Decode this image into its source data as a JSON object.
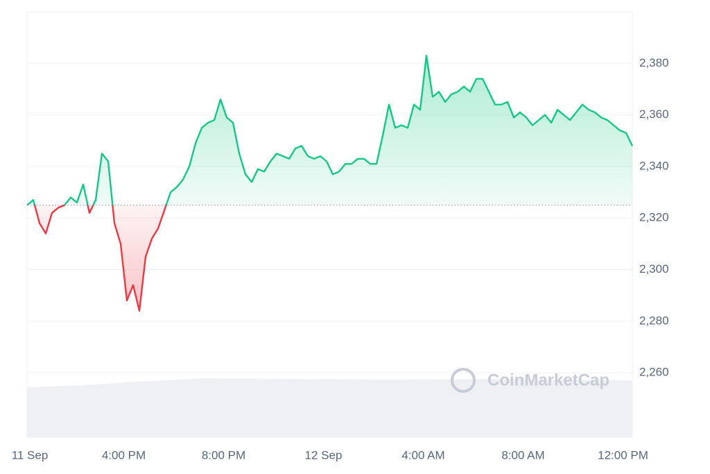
{
  "chart_data": {
    "type": "line",
    "watermark": "CoinMarketCap",
    "baseline": 2325,
    "up_color": "#16c784",
    "down_color": "#ea3943",
    "grid": true,
    "values": [
      2325,
      2327,
      2318,
      2314,
      2322,
      2324,
      2325,
      2328,
      2326,
      2333,
      2322,
      2327,
      2345,
      2342,
      2318,
      2310,
      2288,
      2294,
      2284,
      2305,
      2312,
      2316,
      2323,
      2330,
      2332,
      2335,
      2340,
      2349,
      2355,
      2357,
      2358,
      2366,
      2359,
      2357,
      2345,
      2337,
      2334,
      2339,
      2338,
      2342,
      2345,
      2344,
      2343,
      2347,
      2348,
      2344,
      2343,
      2344,
      2342,
      2337,
      2338,
      2341,
      2341,
      2343,
      2343,
      2341,
      2341,
      2352,
      2364,
      2355,
      2356,
      2355,
      2364,
      2362,
      2383,
      2367,
      2369,
      2365,
      2368,
      2369,
      2371,
      2369,
      2374,
      2374,
      2369,
      2364,
      2364,
      2365,
      2359,
      2361,
      2359,
      2356,
      2358,
      2360,
      2357,
      2362,
      2360,
      2358,
      2361,
      2364,
      2362,
      2361,
      2359,
      2358,
      2356,
      2354,
      2353,
      2348
    ],
    "xlim": [
      0,
      97
    ],
    "xticks": [
      {
        "value": 0,
        "label": "11 Sep"
      },
      {
        "value": 15.5,
        "label": "4:00 PM"
      },
      {
        "value": 31.5,
        "label": "8:00 PM"
      },
      {
        "value": 47.5,
        "label": "12 Sep"
      },
      {
        "value": 63.5,
        "label": "4:00 AM"
      },
      {
        "value": 79.5,
        "label": "8:00 AM"
      },
      {
        "value": 95.5,
        "label": "12:00 PM"
      }
    ],
    "ylim": [
      2235,
      2400
    ],
    "yticks": [
      {
        "value": 2260,
        "label": "2,260"
      },
      {
        "value": 2280,
        "label": "2,280"
      },
      {
        "value": 2300,
        "label": "2,300"
      },
      {
        "value": 2320,
        "label": "2,320"
      },
      {
        "value": 2340,
        "label": "2,340"
      },
      {
        "value": 2360,
        "label": "2,360"
      },
      {
        "value": 2380,
        "label": "2,380"
      }
    ]
  }
}
